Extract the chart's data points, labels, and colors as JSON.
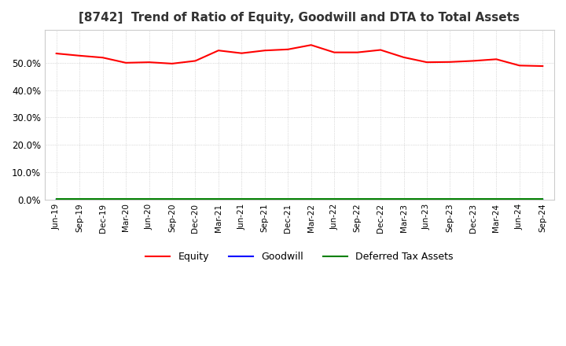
{
  "title": "[8742]  Trend of Ratio of Equity, Goodwill and DTA to Total Assets",
  "title_fontsize": 11,
  "xlabels": [
    "Jun-19",
    "Sep-19",
    "Dec-19",
    "Mar-20",
    "Jun-20",
    "Sep-20",
    "Dec-20",
    "Mar-21",
    "Jun-21",
    "Sep-21",
    "Dec-21",
    "Mar-22",
    "Jun-22",
    "Sep-22",
    "Dec-22",
    "Mar-23",
    "Jun-23",
    "Sep-23",
    "Dec-23",
    "Mar-24",
    "Jun-24",
    "Sep-24"
  ],
  "equity": [
    0.534,
    0.526,
    0.519,
    0.5,
    0.502,
    0.497,
    0.507,
    0.545,
    0.535,
    0.545,
    0.549,
    0.565,
    0.538,
    0.538,
    0.547,
    0.52,
    0.502,
    0.503,
    0.507,
    0.513,
    0.49,
    0.488
  ],
  "goodwill": [
    0.0,
    0.0,
    0.0,
    0.0,
    0.0,
    0.0,
    0.0,
    0.0,
    0.001,
    0.001,
    0.001,
    0.001,
    0.001,
    0.0,
    0.0,
    0.0,
    0.0,
    0.0,
    0.0,
    0.0,
    0.0,
    0.0
  ],
  "dta": [
    0.003,
    0.003,
    0.003,
    0.003,
    0.003,
    0.003,
    0.003,
    0.003,
    0.003,
    0.003,
    0.003,
    0.003,
    0.003,
    0.003,
    0.003,
    0.003,
    0.003,
    0.003,
    0.003,
    0.003,
    0.003,
    0.003
  ],
  "equity_color": "#ff0000",
  "goodwill_color": "#0000ff",
  "dta_color": "#008000",
  "ylim": [
    0.0,
    0.62
  ],
  "yticks": [
    0.0,
    0.1,
    0.2,
    0.3,
    0.4,
    0.5
  ],
  "background_color": "#ffffff",
  "grid_color": "#aaaaaa",
  "legend_labels": [
    "Equity",
    "Goodwill",
    "Deferred Tax Assets"
  ]
}
